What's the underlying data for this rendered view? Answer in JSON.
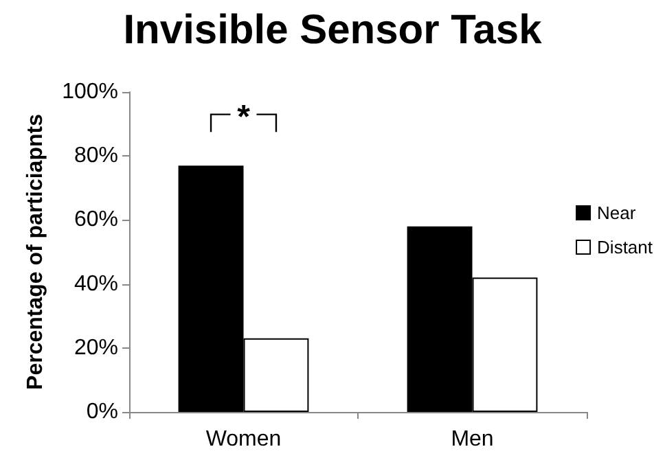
{
  "chart_data": {
    "type": "bar",
    "title": "Invisible Sensor Task",
    "ylabel": "Percentage of particiapnts",
    "categories": [
      "Women",
      "Men"
    ],
    "series": [
      {
        "name": "Near",
        "color": "#000000",
        "values": [
          77,
          58
        ]
      },
      {
        "name": "Distant",
        "color": "#ffffff",
        "values": [
          23,
          42
        ]
      }
    ],
    "ylim": [
      0,
      100
    ],
    "yticks": [
      {
        "value": 0,
        "label": "0%"
      },
      {
        "value": 20,
        "label": "20%"
      },
      {
        "value": 40,
        "label": "40%"
      },
      {
        "value": 60,
        "label": "60%"
      },
      {
        "value": 80,
        "label": "80%"
      },
      {
        "value": 100,
        "label": "100%"
      }
    ],
    "grid": false,
    "legend": "right",
    "annotations": [
      "*"
    ]
  }
}
